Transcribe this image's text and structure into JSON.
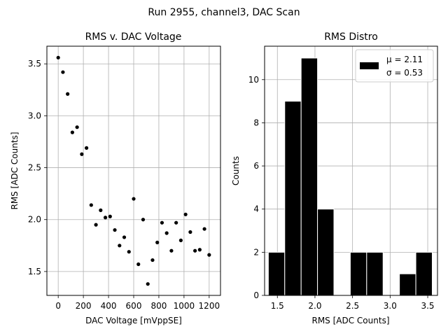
{
  "figure": {
    "suptitle": "Run 2955, channel3, DAC Scan"
  },
  "chart_data": [
    {
      "type": "scatter",
      "title": "RMS v. DAC Voltage",
      "xlabel": "DAC Voltage [mVppSE]",
      "ylabel": "RMS [ADC Counts]",
      "xlim": [
        -90,
        1290
      ],
      "ylim": [
        1.27,
        3.67
      ],
      "xticks": [
        0,
        200,
        400,
        600,
        800,
        1000,
        1200
      ],
      "xtick_labels": [
        "0",
        "200",
        "400",
        "600",
        "800",
        "1000",
        "1200"
      ],
      "yticks": [
        1.5,
        2.0,
        2.5,
        3.0,
        3.5
      ],
      "ytick_labels": [
        "1.5",
        "2.0",
        "2.5",
        "3.0",
        "3.5"
      ],
      "grid": true,
      "marker_color": "#000000",
      "x": [
        0,
        37.5,
        75,
        112.5,
        150,
        187.5,
        225,
        262.5,
        300,
        337.5,
        375,
        412.5,
        450,
        487.5,
        525,
        562.5,
        600,
        637.5,
        675,
        712.5,
        750,
        787.5,
        825,
        862.5,
        900,
        937.5,
        975,
        1012.5,
        1050,
        1087.5,
        1125,
        1162.5,
        1200
      ],
      "y": [
        3.56,
        3.42,
        3.21,
        2.84,
        2.89,
        2.63,
        2.69,
        2.14,
        1.95,
        2.09,
        2.02,
        2.03,
        1.9,
        1.75,
        1.83,
        1.69,
        2.2,
        1.57,
        2.0,
        1.38,
        1.61,
        1.78,
        1.97,
        1.87,
        1.7,
        1.97,
        1.8,
        2.05,
        1.88,
        1.7,
        1.71,
        1.91,
        1.66
      ]
    },
    {
      "type": "bar",
      "title": "RMS Distro",
      "xlabel": "RMS [ADC Counts]",
      "ylabel": "Counts",
      "xlim": [
        1.33,
        3.63
      ],
      "ylim": [
        0,
        11.55
      ],
      "xticks": [
        1.5,
        2.0,
        2.5,
        3.0,
        3.5
      ],
      "xtick_labels": [
        "1.5",
        "2.0",
        "2.5",
        "3.0",
        "3.5"
      ],
      "yticks": [
        0,
        2,
        4,
        6,
        8,
        10
      ],
      "ytick_labels": [
        "0",
        "2",
        "4",
        "6",
        "8",
        "10"
      ],
      "grid": true,
      "bar_color": "#000000",
      "bin_edges": [
        1.38,
        1.598,
        1.816,
        2.034,
        2.252,
        2.47,
        2.688,
        2.906,
        3.124,
        3.342,
        3.56
      ],
      "counts": [
        2,
        9,
        11,
        4,
        0,
        2,
        2,
        0,
        1,
        2
      ],
      "legend": {
        "position": "top-right",
        "line1": "μ = 2.11",
        "line2": "σ = 0.53"
      }
    }
  ]
}
